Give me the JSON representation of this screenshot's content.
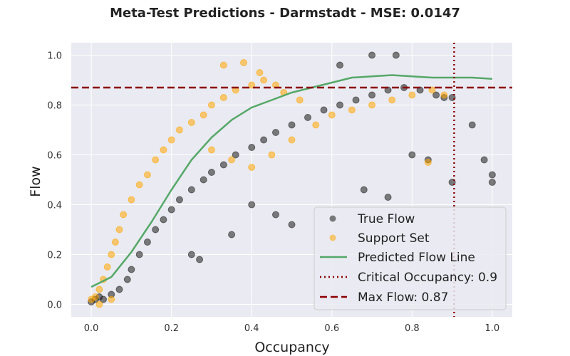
{
  "chart_data": {
    "type": "scatter",
    "title": "Meta-Test Predictions - Darmstadt - MSE: 0.0147",
    "xlabel": "Occupancy",
    "ylabel": "Flow",
    "xlim": [
      -0.05,
      1.05
    ],
    "ylim": [
      -0.05,
      1.05
    ],
    "xticks": [
      "0.0",
      "0.2",
      "0.4",
      "0.6",
      "0.8",
      "1.0"
    ],
    "yticks": [
      "0.0",
      "0.2",
      "0.4",
      "0.6",
      "0.8",
      "1.0"
    ],
    "grid": true,
    "legend_position": "lower-right",
    "series": [
      {
        "name": "True Flow",
        "kind": "scatter",
        "color": "#1a1a1a",
        "opacity": 0.55,
        "points": [
          [
            0.0,
            0.01
          ],
          [
            0.01,
            0.02
          ],
          [
            0.02,
            0.03
          ],
          [
            0.03,
            0.02
          ],
          [
            0.05,
            0.04
          ],
          [
            0.07,
            0.06
          ],
          [
            0.09,
            0.1
          ],
          [
            0.1,
            0.14
          ],
          [
            0.12,
            0.2
          ],
          [
            0.14,
            0.25
          ],
          [
            0.16,
            0.3
          ],
          [
            0.18,
            0.34
          ],
          [
            0.2,
            0.38
          ],
          [
            0.22,
            0.42
          ],
          [
            0.25,
            0.46
          ],
          [
            0.28,
            0.5
          ],
          [
            0.3,
            0.53
          ],
          [
            0.33,
            0.56
          ],
          [
            0.36,
            0.6
          ],
          [
            0.4,
            0.63
          ],
          [
            0.43,
            0.66
          ],
          [
            0.46,
            0.69
          ],
          [
            0.5,
            0.72
          ],
          [
            0.54,
            0.75
          ],
          [
            0.58,
            0.78
          ],
          [
            0.62,
            0.8
          ],
          [
            0.66,
            0.82
          ],
          [
            0.7,
            0.84
          ],
          [
            0.74,
            0.86
          ],
          [
            0.78,
            0.87
          ],
          [
            0.82,
            0.86
          ],
          [
            0.86,
            0.84
          ],
          [
            0.88,
            0.83
          ],
          [
            0.9,
            0.83
          ],
          [
            0.9,
            0.49
          ],
          [
            0.95,
            0.72
          ],
          [
            0.98,
            0.58
          ],
          [
            1.0,
            0.52
          ],
          [
            1.0,
            0.49
          ],
          [
            0.76,
            1.0
          ],
          [
            0.7,
            1.0
          ],
          [
            0.62,
            0.96
          ],
          [
            0.4,
            0.4
          ],
          [
            0.46,
            0.36
          ],
          [
            0.5,
            0.32
          ],
          [
            0.35,
            0.28
          ],
          [
            0.25,
            0.2
          ],
          [
            0.27,
            0.18
          ],
          [
            0.8,
            0.6
          ],
          [
            0.84,
            0.58
          ],
          [
            0.74,
            0.43
          ],
          [
            0.68,
            0.46
          ]
        ]
      },
      {
        "name": "Support Set",
        "kind": "scatter",
        "color": "#ffa500",
        "opacity": 0.55,
        "points": [
          [
            0.0,
            0.02
          ],
          [
            0.01,
            0.03
          ],
          [
            0.02,
            0.06
          ],
          [
            0.03,
            0.1
          ],
          [
            0.04,
            0.15
          ],
          [
            0.05,
            0.2
          ],
          [
            0.06,
            0.25
          ],
          [
            0.07,
            0.3
          ],
          [
            0.08,
            0.36
          ],
          [
            0.1,
            0.42
          ],
          [
            0.12,
            0.48
          ],
          [
            0.14,
            0.52
          ],
          [
            0.16,
            0.58
          ],
          [
            0.18,
            0.62
          ],
          [
            0.2,
            0.66
          ],
          [
            0.22,
            0.7
          ],
          [
            0.25,
            0.73
          ],
          [
            0.28,
            0.76
          ],
          [
            0.3,
            0.8
          ],
          [
            0.33,
            0.83
          ],
          [
            0.36,
            0.86
          ],
          [
            0.4,
            0.88
          ],
          [
            0.43,
            0.9
          ],
          [
            0.46,
            0.88
          ],
          [
            0.48,
            0.85
          ],
          [
            0.52,
            0.82
          ],
          [
            0.33,
            0.96
          ],
          [
            0.38,
            0.97
          ],
          [
            0.42,
            0.93
          ],
          [
            0.3,
            0.62
          ],
          [
            0.35,
            0.58
          ],
          [
            0.4,
            0.55
          ],
          [
            0.45,
            0.6
          ],
          [
            0.5,
            0.66
          ],
          [
            0.56,
            0.72
          ],
          [
            0.6,
            0.76
          ],
          [
            0.65,
            0.78
          ],
          [
            0.7,
            0.8
          ],
          [
            0.75,
            0.82
          ],
          [
            0.8,
            0.84
          ],
          [
            0.85,
            0.86
          ],
          [
            0.88,
            0.84
          ],
          [
            0.84,
            0.57
          ],
          [
            0.02,
            0.0
          ],
          [
            0.05,
            0.02
          ]
        ]
      },
      {
        "name": "Predicted Flow Line",
        "kind": "line",
        "color": "#55a868",
        "points": [
          [
            0.0,
            0.07
          ],
          [
            0.05,
            0.11
          ],
          [
            0.1,
            0.21
          ],
          [
            0.15,
            0.33
          ],
          [
            0.2,
            0.46
          ],
          [
            0.25,
            0.58
          ],
          [
            0.3,
            0.67
          ],
          [
            0.35,
            0.74
          ],
          [
            0.4,
            0.79
          ],
          [
            0.45,
            0.82
          ],
          [
            0.5,
            0.85
          ],
          [
            0.55,
            0.87
          ],
          [
            0.6,
            0.89
          ],
          [
            0.65,
            0.91
          ],
          [
            0.7,
            0.915
          ],
          [
            0.75,
            0.92
          ],
          [
            0.8,
            0.915
          ],
          [
            0.85,
            0.91
          ],
          [
            0.9,
            0.91
          ],
          [
            0.95,
            0.91
          ],
          [
            1.0,
            0.905
          ]
        ]
      }
    ],
    "reference_lines": [
      {
        "name": "Critical Occupancy: 0.9",
        "orientation": "vertical",
        "value": 0.905,
        "color": "#8b0000",
        "style": "dotted"
      },
      {
        "name": "Max Flow: 0.87",
        "orientation": "horizontal",
        "value": 0.87,
        "color": "#8b0000",
        "style": "dashed"
      }
    ],
    "legend": [
      "True Flow",
      "Support Set",
      "Predicted Flow Line",
      "Critical Occupancy: 0.9",
      "Max Flow: 0.87"
    ]
  }
}
